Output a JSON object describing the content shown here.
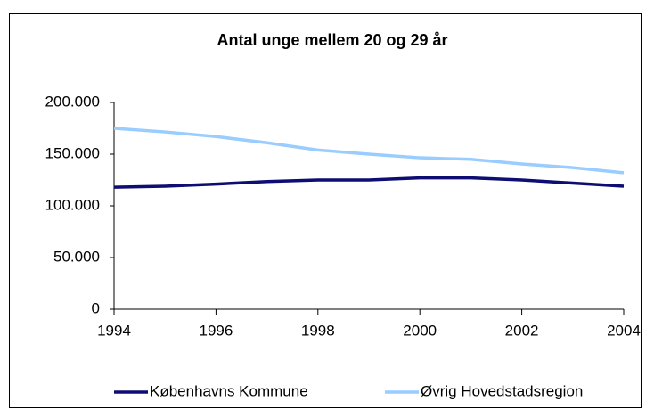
{
  "chart_data": {
    "type": "line",
    "title": "Antal unge mellem 20 og 29 år",
    "x": [
      1994,
      1995,
      1996,
      1997,
      1998,
      1999,
      2000,
      2001,
      2002,
      2003,
      2004
    ],
    "series": [
      {
        "name": "Københavns Kommune",
        "color": "#0d0d73",
        "values": [
          118000,
          119000,
          121000,
          123500,
          125000,
          125000,
          127000,
          127000,
          125000,
          122000,
          119000
        ]
      },
      {
        "name": "Øvrig Hovedstadsregion",
        "color": "#99ccff",
        "values": [
          175000,
          171500,
          167000,
          161000,
          154000,
          150000,
          146500,
          145000,
          140500,
          137000,
          132000
        ]
      }
    ],
    "xlim": [
      1994,
      2004
    ],
    "xticks": [
      1994,
      1996,
      1998,
      2000,
      2002,
      2004
    ],
    "ylim": [
      0,
      200000
    ],
    "yticks": [
      0,
      {
        "value": 50000,
        "label": "50.000"
      },
      {
        "value": 100000,
        "label": "100.000"
      },
      {
        "value": 150000,
        "label": "150.000"
      },
      {
        "value": 200000,
        "label": "200.000"
      }
    ],
    "grid": true,
    "legend": "bottom"
  }
}
